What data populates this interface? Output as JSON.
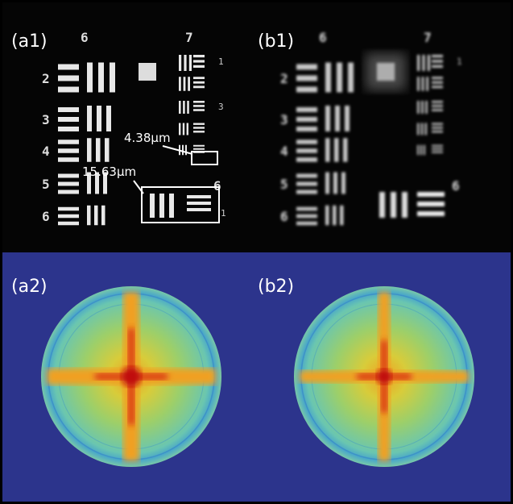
{
  "panels": [
    {
      "label": "(a1)"
    },
    {
      "label": "(b1)"
    },
    {
      "label": "(a2)"
    },
    {
      "label": "(b2)"
    }
  ],
  "target_a1": {
    "groups": [
      "6",
      "7"
    ],
    "elements_left": [
      "2",
      "3",
      "4",
      "5",
      "6"
    ],
    "elements_right": [
      "1",
      "3"
    ],
    "inset": [
      "6",
      "1"
    ]
  },
  "target_b1": {
    "groups": [
      "6",
      "7"
    ],
    "elements_left": [
      "2",
      "3",
      "4",
      "5",
      "6"
    ],
    "elements_right": [
      "1"
    ],
    "inset": [
      "6"
    ]
  },
  "annotations": [
    "4.38μm",
    "15.63μm"
  ]
}
